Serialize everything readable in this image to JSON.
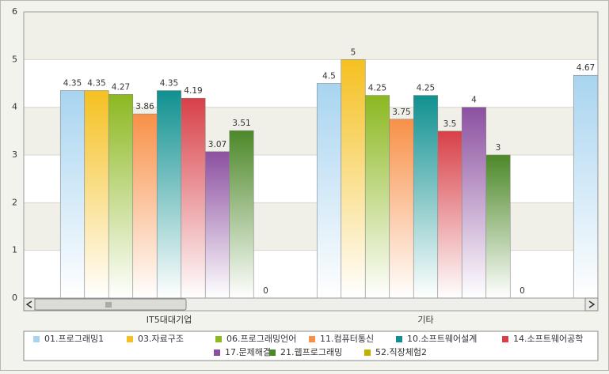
{
  "chart_data": {
    "type": "bar",
    "categories": [
      "IT5대대기업",
      "기타",
      null
    ],
    "series": [
      {
        "name": "01.프로그래밍1",
        "color": "#a8d4f0",
        "values": [
          4.35,
          4.5,
          4.67
        ]
      },
      {
        "name": "03.자료구조",
        "color": "#f5c020",
        "values": [
          4.35,
          5,
          null
        ]
      },
      {
        "name": "06.프로그래밍언어",
        "color": "#8cb820",
        "values": [
          4.27,
          4.25,
          null
        ]
      },
      {
        "name": "11.컴퓨터통신",
        "color": "#f89048",
        "values": [
          3.86,
          3.75,
          null
        ]
      },
      {
        "name": "10.소프트웨어설계",
        "color": "#109090",
        "values": [
          4.35,
          4.25,
          null
        ]
      },
      {
        "name": "14.소프트웨어공학",
        "color": "#d84048",
        "values": [
          4.19,
          3.5,
          null
        ]
      },
      {
        "name": "17.문제해결",
        "color": "#8c50a0",
        "values": [
          3.07,
          4,
          null
        ]
      },
      {
        "name": "21.웹프로그래밍",
        "color": "#4c8828",
        "values": [
          3.51,
          3,
          null
        ]
      },
      {
        "name": "52.직장체험2",
        "color": "#c0b000",
        "values": [
          0,
          0,
          null
        ]
      }
    ],
    "ylim": [
      0,
      6
    ],
    "yticks": [
      0,
      1,
      2,
      3,
      4,
      5,
      6
    ],
    "grid": true
  }
}
